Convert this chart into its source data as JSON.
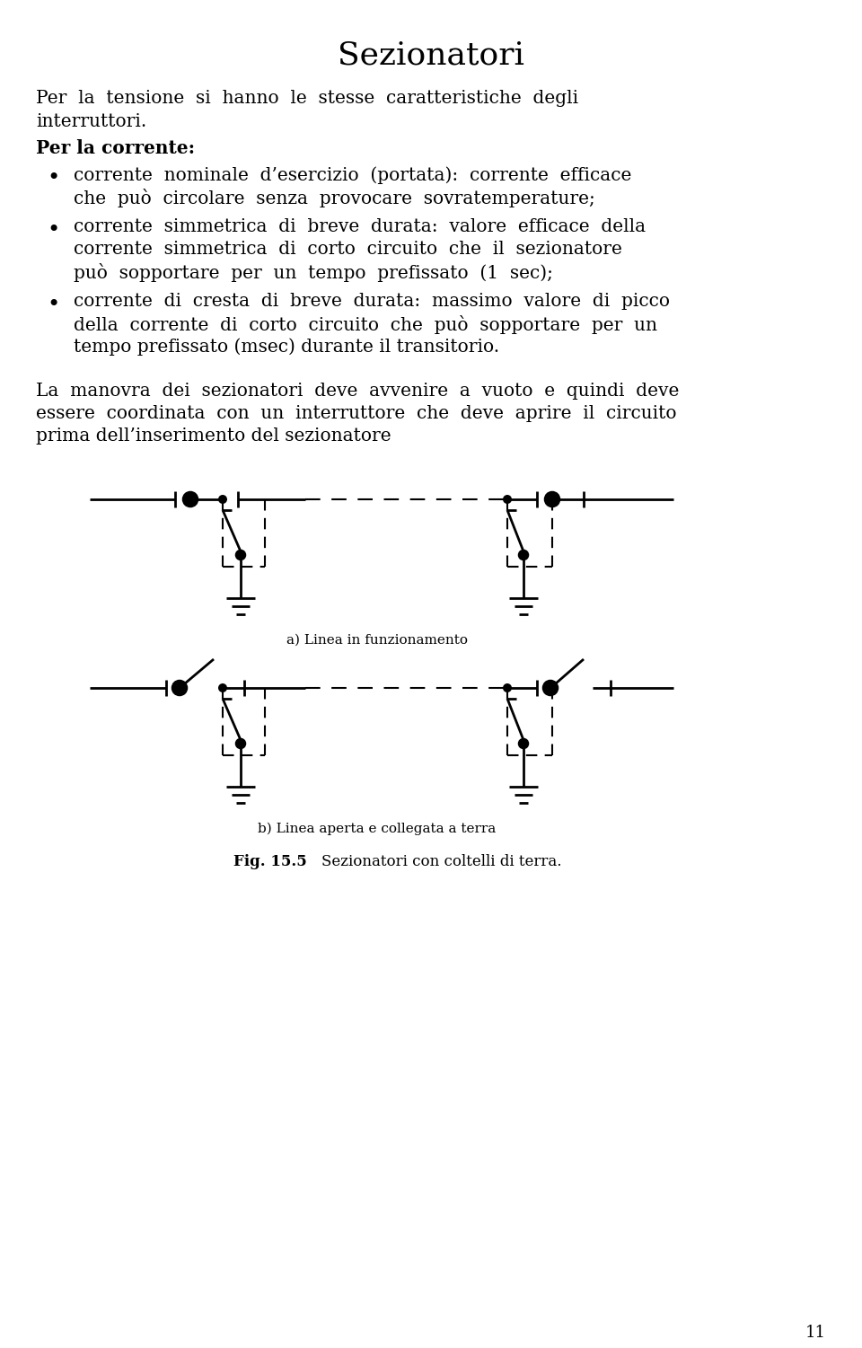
{
  "title": "Sezionatori",
  "bg_color": "#ffffff",
  "text_color": "#000000",
  "title_fontsize": 26,
  "body_fontsize": 14.5,
  "caption_fontsize": 11,
  "fig_caption_fontsize": 12,
  "label_a": "a) Linea in funzionamento",
  "label_b": "b) Linea aperta e collegata a terra",
  "fig_caption": "Fig. 15.5   Sezionatori con coltelli di terra.",
  "page_number": "11"
}
